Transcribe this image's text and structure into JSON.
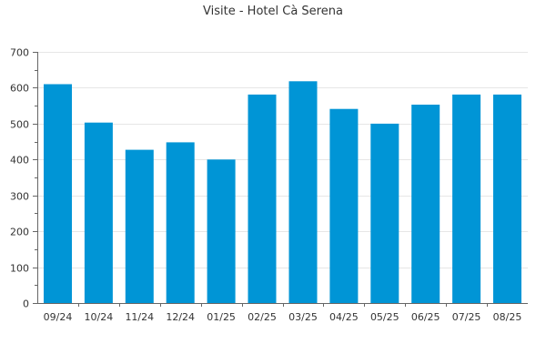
{
  "chart_data": {
    "type": "bar",
    "title": "Visite - Hotel Cà Serena",
    "categories": [
      "09/24",
      "10/24",
      "11/24",
      "12/24",
      "01/25",
      "02/25",
      "03/25",
      "04/25",
      "05/25",
      "06/25",
      "07/25",
      "08/25"
    ],
    "values": [
      610,
      503,
      427,
      448,
      400,
      581,
      618,
      541,
      500,
      553,
      581,
      581
    ],
    "ylim": [
      0,
      700
    ],
    "yticks": [
      0,
      100,
      200,
      300,
      400,
      500,
      600,
      700
    ],
    "grid": true,
    "bar_color": "#0095d6"
  }
}
